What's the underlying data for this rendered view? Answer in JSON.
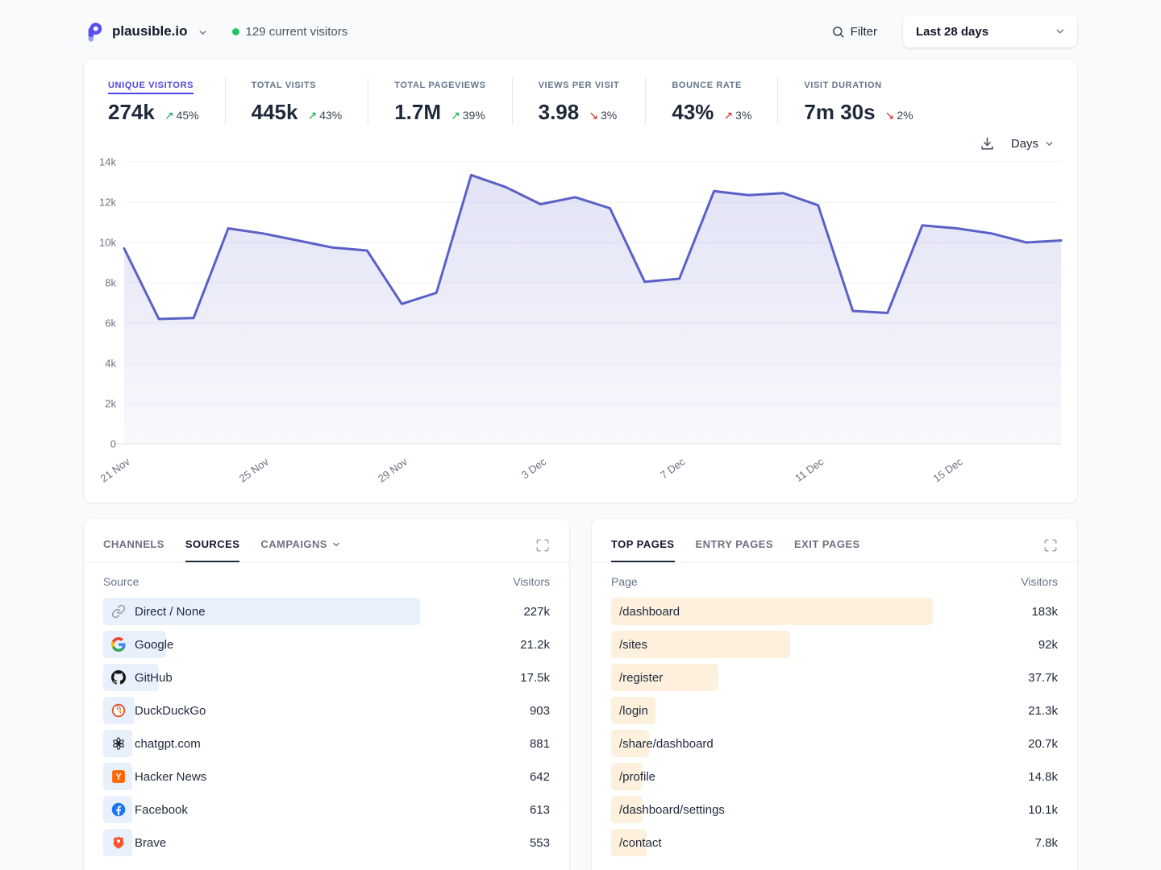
{
  "header": {
    "site": "plausible.io",
    "current_visitors": "129 current visitors",
    "filter_label": "Filter",
    "date_range": "Last 28 days"
  },
  "stats": [
    {
      "label": "UNIQUE VISITORS",
      "value": "274k",
      "change": "45%",
      "direction": "up",
      "tone": "good",
      "active": true
    },
    {
      "label": "TOTAL VISITS",
      "value": "445k",
      "change": "43%",
      "direction": "up",
      "tone": "good",
      "active": false
    },
    {
      "label": "TOTAL PAGEVIEWS",
      "value": "1.7M",
      "change": "39%",
      "direction": "up",
      "tone": "good",
      "active": false
    },
    {
      "label": "VIEWS PER VISIT",
      "value": "3.98",
      "change": "3%",
      "direction": "down",
      "tone": "bad",
      "active": false
    },
    {
      "label": "BOUNCE RATE",
      "value": "43%",
      "change": "3%",
      "direction": "up",
      "tone": "bad",
      "active": false
    },
    {
      "label": "VISIT DURATION",
      "value": "7m 30s",
      "change": "2%",
      "direction": "down",
      "tone": "bad",
      "active": false
    }
  ],
  "chart_controls": {
    "interval_label": "Days"
  },
  "chart_data": {
    "type": "area",
    "title": "Unique visitors — last 28 days",
    "x": [
      "21 Nov",
      "22 Nov",
      "23 Nov",
      "24 Nov",
      "25 Nov",
      "26 Nov",
      "27 Nov",
      "28 Nov",
      "29 Nov",
      "30 Nov",
      "1 Dec",
      "2 Dec",
      "3 Dec",
      "4 Dec",
      "5 Dec",
      "6 Dec",
      "7 Dec",
      "8 Dec",
      "9 Dec",
      "10 Dec",
      "11 Dec",
      "12 Dec",
      "13 Dec",
      "14 Dec",
      "15 Dec",
      "16 Dec",
      "17 Dec",
      "18 Dec"
    ],
    "values": [
      9700,
      6200,
      6250,
      10700,
      10450,
      10100,
      9750,
      9600,
      6950,
      7500,
      13350,
      12750,
      11900,
      12250,
      11700,
      8050,
      8200,
      12550,
      12350,
      12450,
      11850,
      6600,
      6500,
      10850,
      10700,
      10450,
      10000,
      10100
    ],
    "x_tick_labels": [
      "21 Nov",
      "25 Nov",
      "29 Nov",
      "3 Dec",
      "7 Dec",
      "11 Dec",
      "15 Dec"
    ],
    "x_tick_every": 4,
    "y_tick_labels": [
      "0",
      "2k",
      "4k",
      "6k",
      "8k",
      "10k",
      "12k",
      "14k"
    ],
    "ylim": [
      0,
      14000
    ],
    "grid": true,
    "legend": "none",
    "line_color": "#5a60c8",
    "fill_color": "#5d61c8"
  },
  "sources_card": {
    "tabs": [
      {
        "label": "CHANNELS",
        "active": false,
        "has_dropdown": false
      },
      {
        "label": "SOURCES",
        "active": true,
        "has_dropdown": false
      },
      {
        "label": "CAMPAIGNS",
        "active": false,
        "has_dropdown": true
      }
    ],
    "columns": {
      "name": "Source",
      "value": "Visitors"
    },
    "bar_color": "#e7f0fb",
    "rows": [
      {
        "name": "Direct / None",
        "visitors": "227k",
        "value": 227000,
        "bar_pct": 71,
        "icon": "link-icon"
      },
      {
        "name": "Google",
        "visitors": "21.2k",
        "value": 21200,
        "bar_pct": 14,
        "icon": "google-icon"
      },
      {
        "name": "GitHub",
        "visitors": "17.5k",
        "value": 17500,
        "bar_pct": 12.5,
        "icon": "github-icon"
      },
      {
        "name": "DuckDuckGo",
        "visitors": "903",
        "value": 903,
        "bar_pct": 7,
        "icon": "duckduckgo-icon"
      },
      {
        "name": "chatgpt.com",
        "visitors": "881",
        "value": 881,
        "bar_pct": 6.5,
        "icon": "openai-icon"
      },
      {
        "name": "Hacker News",
        "visitors": "642",
        "value": 642,
        "bar_pct": 6.5,
        "icon": "hackernews-icon"
      },
      {
        "name": "Facebook",
        "visitors": "613",
        "value": 613,
        "bar_pct": 6.5,
        "icon": "facebook-icon"
      },
      {
        "name": "Brave",
        "visitors": "553",
        "value": 553,
        "bar_pct": 6.5,
        "icon": "brave-icon"
      }
    ]
  },
  "pages_card": {
    "tabs": [
      {
        "label": "TOP PAGES",
        "active": true,
        "has_dropdown": false
      },
      {
        "label": "ENTRY PAGES",
        "active": false,
        "has_dropdown": false
      },
      {
        "label": "EXIT PAGES",
        "active": false,
        "has_dropdown": false
      }
    ],
    "columns": {
      "name": "Page",
      "value": "Visitors"
    },
    "bar_color": "#fdf0dc",
    "rows": [
      {
        "name": "/dashboard",
        "visitors": "183k",
        "value": 183000,
        "bar_pct": 72
      },
      {
        "name": "/sites",
        "visitors": "92k",
        "value": 92000,
        "bar_pct": 40
      },
      {
        "name": "/register",
        "visitors": "37.7k",
        "value": 37700,
        "bar_pct": 24
      },
      {
        "name": "/login",
        "visitors": "21.3k",
        "value": 21300,
        "bar_pct": 10
      },
      {
        "name": "/share/dashboard",
        "visitors": "20.7k",
        "value": 20700,
        "bar_pct": 8.5
      },
      {
        "name": "/profile",
        "visitors": "14.8k",
        "value": 14800,
        "bar_pct": 7
      },
      {
        "name": "/dashboard/settings",
        "visitors": "10.1k",
        "value": 10100,
        "bar_pct": 7
      },
      {
        "name": "/contact",
        "visitors": "7.8k",
        "value": 7800,
        "bar_pct": 8
      }
    ]
  }
}
